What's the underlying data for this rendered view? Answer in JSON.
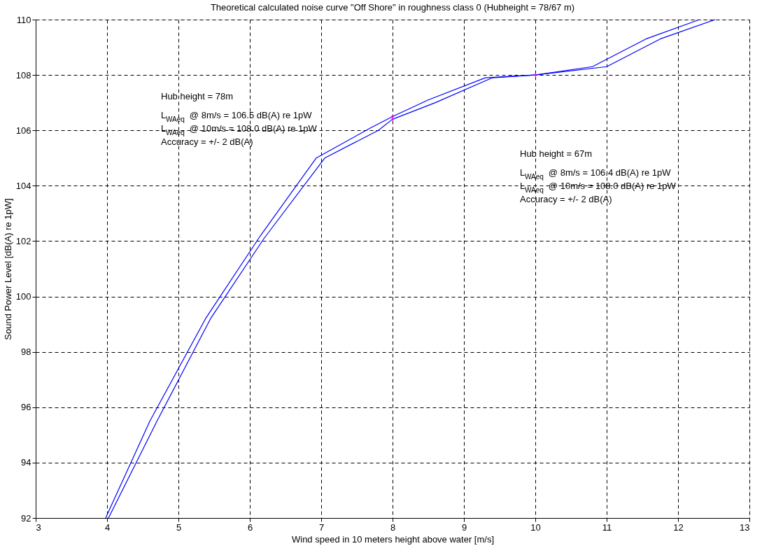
{
  "chart_data": {
    "type": "line",
    "title": "Theoretical calculated noise curve \"Off Shore\" in roughness class 0          (Hubheight = 78/67 m)",
    "xlabel": "Wind speed in 10 meters height above water [m/s]",
    "ylabel": "Sound Power Level [dB(A) re 1pW]",
    "series": [
      {
        "color": "#0000ff",
        "x": [
          3.98,
          4.6,
          5.38,
          6.15,
          6.93,
          7.7,
          8.0,
          8.5,
          9.3,
          10.0,
          10.8,
          11.55,
          12.3
        ],
        "values": [
          92,
          95.5,
          99.2,
          102.2,
          105.0,
          106.1,
          106.5,
          107.1,
          107.9,
          108.0,
          108.3,
          109.3,
          110
        ]
      },
      {
        "color": "#0000ff",
        "x": [
          4.02,
          4.7,
          5.45,
          6.2,
          7.05,
          7.8,
          8.0,
          8.6,
          9.4,
          10.0,
          11.0,
          11.75,
          12.52
        ],
        "values": [
          92,
          95.5,
          99.2,
          102.1,
          105.0,
          106.0,
          106.4,
          107.0,
          107.9,
          108.0,
          108.3,
          109.3,
          110
        ]
      },
      {
        "type": "scatter",
        "color": "#ff00ff",
        "marker": "diamond",
        "x": [
          8,
          8,
          10
        ],
        "values": [
          106.5,
          106.4,
          108.0
        ]
      }
    ],
    "xlim": [
      3,
      13
    ],
    "xticks": [
      3,
      4,
      5,
      6,
      7,
      8,
      9,
      10,
      11,
      12,
      13
    ],
    "ylim": [
      92,
      110
    ],
    "yticks": [
      92,
      94,
      96,
      98,
      100,
      102,
      104,
      106,
      108,
      110
    ],
    "grid": true,
    "line_style": "solid",
    "marker": "none",
    "annotations": [
      "Hub height = 78m",
      "L$_{WAeq}$ @ 8m/s = 106.5 dB(A) re 1pW",
      "L$_{WAeq}$ @ 10m/s = 108.0 dB(A) re 1pW",
      "Accuracy = +/- 2 dB(A)",
      "Hub height = 67m",
      "L$_{WAeq}$ @ 8m/s = 106.4 dB(A) re 1pW",
      "L$_{WAeq}$ @ 10m/s = 108.0 dB(A) re 1pW",
      "Accuracy = +/- 2 dB(A)"
    ]
  }
}
